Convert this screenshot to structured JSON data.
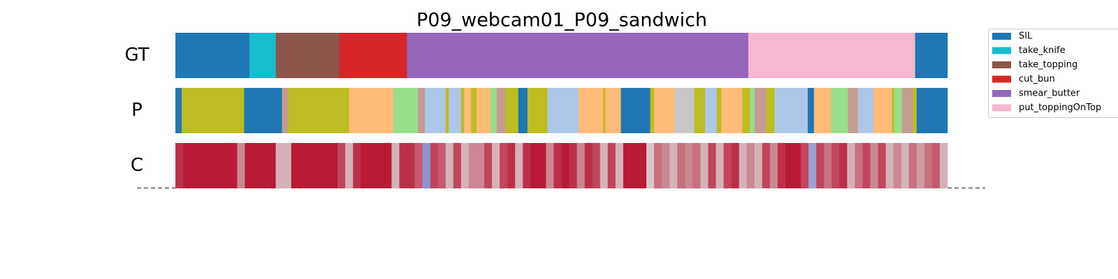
{
  "chart_data": {
    "type": "segmentation",
    "title": "P09_webcam01_P09_sandwich",
    "xlim": [
      0,
      100
    ],
    "colormap": "coolwarm",
    "legend": [
      {
        "name": "SIL",
        "color": "#1f77b4"
      },
      {
        "name": "take_knife",
        "color": "#17becf"
      },
      {
        "name": "take_topping",
        "color": "#8c564b"
      },
      {
        "name": "cut_bun",
        "color": "#d62728"
      },
      {
        "name": "smear_butter",
        "color": "#9467bd"
      },
      {
        "name": "put_toppingOnTop",
        "color": "#f7b6d2"
      }
    ],
    "rows": [
      {
        "label": "GT",
        "segments": [
          {
            "start": 0,
            "end": 9.6,
            "color": "#1f77b4"
          },
          {
            "start": 9.6,
            "end": 13.0,
            "color": "#17becf"
          },
          {
            "start": 13.0,
            "end": 21.2,
            "color": "#8c564b"
          },
          {
            "start": 21.2,
            "end": 30.0,
            "color": "#d62728"
          },
          {
            "start": 30.0,
            "end": 74.2,
            "color": "#9467bd"
          },
          {
            "start": 74.2,
            "end": 95.8,
            "color": "#f7b6d2"
          },
          {
            "start": 95.8,
            "end": 100,
            "color": "#1f77b4"
          }
        ]
      },
      {
        "label": "P",
        "segments": [
          {
            "start": 0,
            "end": 0.8,
            "color": "#1f77b4"
          },
          {
            "start": 0.8,
            "end": 8.9,
            "color": "#bcbd22"
          },
          {
            "start": 8.9,
            "end": 13.8,
            "color": "#1f77b4"
          },
          {
            "start": 13.8,
            "end": 14.6,
            "color": "#c49c94"
          },
          {
            "start": 14.6,
            "end": 22.5,
            "color": "#bcbd22"
          },
          {
            "start": 22.5,
            "end": 28.2,
            "color": "#ffbb78"
          },
          {
            "start": 28.2,
            "end": 31.4,
            "color": "#98df8a"
          },
          {
            "start": 31.4,
            "end": 32.3,
            "color": "#c49c94"
          },
          {
            "start": 32.3,
            "end": 35.0,
            "color": "#aec7e8"
          },
          {
            "start": 35.0,
            "end": 35.4,
            "color": "#bcbd22"
          },
          {
            "start": 35.4,
            "end": 37.0,
            "color": "#aec7e8"
          },
          {
            "start": 37.0,
            "end": 37.4,
            "color": "#bcbd22"
          },
          {
            "start": 37.4,
            "end": 38.3,
            "color": "#ffbb78"
          },
          {
            "start": 38.3,
            "end": 39.0,
            "color": "#bcbd22"
          },
          {
            "start": 39.0,
            "end": 40.8,
            "color": "#ffbb78"
          },
          {
            "start": 40.8,
            "end": 41.6,
            "color": "#98df8a"
          },
          {
            "start": 41.6,
            "end": 42.7,
            "color": "#c49c94"
          },
          {
            "start": 42.7,
            "end": 44.4,
            "color": "#bcbd22"
          },
          {
            "start": 44.4,
            "end": 45.6,
            "color": "#1f77b4"
          },
          {
            "start": 45.6,
            "end": 48.2,
            "color": "#bcbd22"
          },
          {
            "start": 48.2,
            "end": 52.2,
            "color": "#aec7e8"
          },
          {
            "start": 52.2,
            "end": 55.4,
            "color": "#ffbb78"
          },
          {
            "start": 55.4,
            "end": 55.7,
            "color": "#bcbd22"
          },
          {
            "start": 55.7,
            "end": 57.7,
            "color": "#ffbb78"
          },
          {
            "start": 57.7,
            "end": 61.5,
            "color": "#1f77b4"
          },
          {
            "start": 61.5,
            "end": 62.0,
            "color": "#bcbd22"
          },
          {
            "start": 62.0,
            "end": 64.6,
            "color": "#ffbb78"
          },
          {
            "start": 64.6,
            "end": 67.2,
            "color": "#c7c7c7"
          },
          {
            "start": 67.2,
            "end": 68.6,
            "color": "#bcbd22"
          },
          {
            "start": 68.6,
            "end": 70.1,
            "color": "#aec7e8"
          },
          {
            "start": 70.1,
            "end": 70.7,
            "color": "#bcbd22"
          },
          {
            "start": 70.7,
            "end": 73.4,
            "color": "#ffbb78"
          },
          {
            "start": 73.4,
            "end": 74.4,
            "color": "#bcbd22"
          },
          {
            "start": 74.4,
            "end": 75.0,
            "color": "#98df8a"
          },
          {
            "start": 75.0,
            "end": 76.5,
            "color": "#c49c94"
          },
          {
            "start": 76.5,
            "end": 77.6,
            "color": "#bcbd22"
          },
          {
            "start": 77.6,
            "end": 81.9,
            "color": "#aec7e8"
          },
          {
            "start": 81.9,
            "end": 82.7,
            "color": "#1f77b4"
          },
          {
            "start": 82.7,
            "end": 84.9,
            "color": "#ffbb78"
          },
          {
            "start": 84.9,
            "end": 87.1,
            "color": "#98df8a"
          },
          {
            "start": 87.1,
            "end": 88.4,
            "color": "#c49c94"
          },
          {
            "start": 88.4,
            "end": 90.4,
            "color": "#aec7e8"
          },
          {
            "start": 90.4,
            "end": 92.8,
            "color": "#ffbb78"
          },
          {
            "start": 92.8,
            "end": 93.1,
            "color": "#bcbd22"
          },
          {
            "start": 93.1,
            "end": 94.1,
            "color": "#98df8a"
          },
          {
            "start": 94.1,
            "end": 95.5,
            "color": "#c49c94"
          },
          {
            "start": 95.5,
            "end": 96.0,
            "color": "#bcbd22"
          },
          {
            "start": 96.0,
            "end": 100,
            "color": "#1f77b4"
          }
        ]
      },
      {
        "label": "C",
        "confidence": [
          0.9,
          0.95,
          0.95,
          0.95,
          0.95,
          0.95,
          0.95,
          0.95,
          0.7,
          0.95,
          0.95,
          0.95,
          0.95,
          0.6,
          0.6,
          0.95,
          0.95,
          0.95,
          0.95,
          0.95,
          0.95,
          0.85,
          0.6,
          0.9,
          0.95,
          0.95,
          0.95,
          0.95,
          0.6,
          0.9,
          0.9,
          0.8,
          0.25,
          0.85,
          0.8,
          0.6,
          0.85,
          0.6,
          0.7,
          0.7,
          0.85,
          0.6,
          0.85,
          0.9,
          0.6,
          0.9,
          0.95,
          0.95,
          0.7,
          0.9,
          0.95,
          0.9,
          0.7,
          0.9,
          0.85,
          0.6,
          0.85,
          0.6,
          0.95,
          0.95,
          0.95,
          0.55,
          0.75,
          0.7,
          0.6,
          0.75,
          0.7,
          0.75,
          0.6,
          0.85,
          0.6,
          0.85,
          0.9,
          0.6,
          0.7,
          0.6,
          0.85,
          0.7,
          0.9,
          0.95,
          0.95,
          0.85,
          0.3,
          0.85,
          0.75,
          0.85,
          0.9,
          0.6,
          0.75,
          0.85,
          0.7,
          0.85,
          0.6,
          0.7,
          0.6,
          0.75,
          0.65,
          0.75,
          0.8,
          0.6
        ]
      }
    ]
  }
}
